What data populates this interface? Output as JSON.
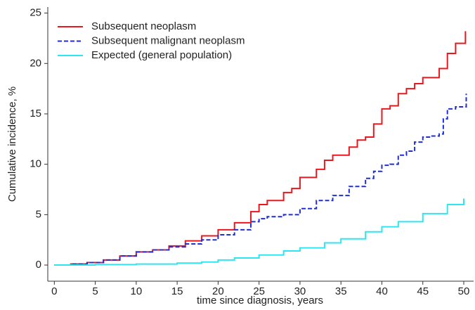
{
  "chart_data": {
    "type": "line",
    "xlabel": "time since diagnosis, years",
    "ylabel": "Cumulative incidence, %",
    "xlim": [
      -0.8,
      51.2
    ],
    "xticks": [
      0,
      5,
      10,
      15,
      20,
      25,
      30,
      35,
      40,
      45,
      50
    ],
    "ylim": [
      -1.6,
      25.6
    ],
    "yticks": [
      0,
      5,
      10,
      15,
      20,
      25
    ],
    "grid": false,
    "legend": "upper left",
    "step": true,
    "series": [
      {
        "name": "Subsequent neoplasm",
        "color": "#e8191e",
        "line_style": "solid",
        "x": [
          0,
          2,
          4,
          6,
          8,
          10,
          12,
          14,
          16,
          18,
          20,
          22,
          24,
          25,
          26,
          28,
          29,
          30,
          32,
          33,
          34,
          36,
          37,
          38,
          39,
          40,
          41,
          42,
          43,
          44,
          45,
          46,
          47,
          48,
          49,
          50,
          50.2
        ],
        "values": [
          0,
          0.1,
          0.25,
          0.5,
          0.9,
          1.3,
          1.5,
          1.9,
          2.4,
          2.9,
          3.5,
          4.2,
          5.3,
          6.0,
          6.4,
          7.2,
          7.6,
          8.7,
          9.5,
          10.4,
          10.9,
          11.7,
          12.4,
          12.7,
          14.0,
          15.5,
          15.8,
          17.0,
          17.5,
          18.0,
          18.6,
          18.6,
          19.5,
          21.0,
          22.0,
          22.0,
          23.2
        ]
      },
      {
        "name": "Subsequent malignant neoplasm",
        "color": "#1f2fd6",
        "line_style": "dashed",
        "x": [
          0,
          2,
          4,
          6,
          8,
          10,
          12,
          14,
          16,
          18,
          20,
          22,
          24,
          25,
          26,
          28,
          30,
          32,
          34,
          36,
          38,
          39,
          40,
          41,
          42,
          43,
          44,
          45,
          46,
          47,
          47.5,
          48,
          49,
          50,
          50.3
        ],
        "values": [
          0,
          0.1,
          0.25,
          0.5,
          0.9,
          1.3,
          1.5,
          1.8,
          2.1,
          2.5,
          3.0,
          3.5,
          4.3,
          4.6,
          4.8,
          5.0,
          5.6,
          6.4,
          6.9,
          7.8,
          8.6,
          9.3,
          9.9,
          10.0,
          10.9,
          11.3,
          12.2,
          12.7,
          12.8,
          13.0,
          14.5,
          15.5,
          15.7,
          15.7,
          17.0
        ]
      },
      {
        "name": "Expected (general population)",
        "color": "#2ee6f0",
        "line_style": "solid",
        "x": [
          0,
          5,
          10,
          15,
          18,
          20,
          22,
          25,
          28,
          30,
          33,
          35,
          38,
          40,
          42,
          45,
          48,
          50
        ],
        "values": [
          0,
          0.05,
          0.1,
          0.2,
          0.3,
          0.5,
          0.7,
          1.0,
          1.4,
          1.7,
          2.2,
          2.6,
          3.3,
          3.8,
          4.3,
          5.1,
          6.0,
          6.6
        ]
      }
    ]
  }
}
